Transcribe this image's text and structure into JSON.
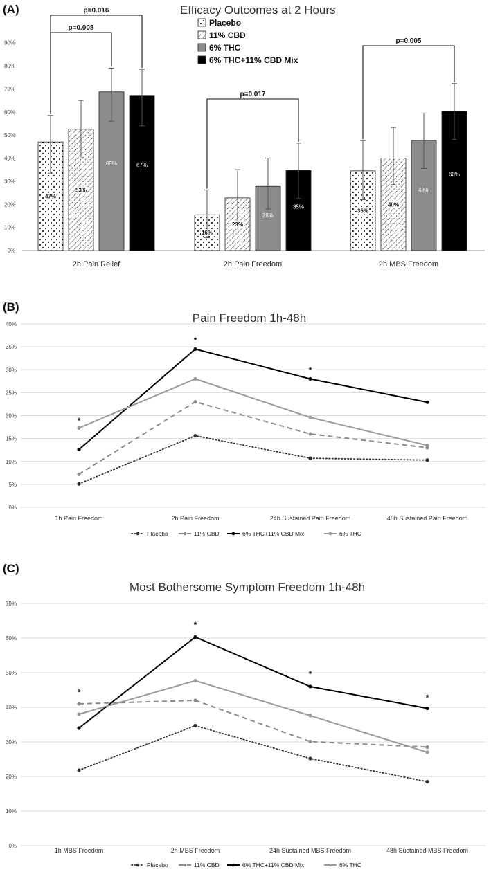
{
  "panels": {
    "a": "(A)",
    "b": "(B)",
    "c": "(C)"
  },
  "colors": {
    "placebo": "#ffffff",
    "cbd": "#ffffff",
    "thc": "#8c8c8c",
    "mix": "#000000",
    "gridline": "#d9d9d9"
  },
  "chart_data": [
    {
      "type": "bar",
      "title": "Efficacy Outcomes at 2 Hours",
      "categories": [
        "2h Pain Relief",
        "2h Pain Freedom",
        "2h MBS Freedom"
      ],
      "yticks": [
        "0%",
        "10%",
        "20%",
        "30%",
        "40%",
        "50%",
        "60%",
        "70%",
        "80%",
        "90%"
      ],
      "ylim": [
        0,
        0.95
      ],
      "series": [
        {
          "name": "Placebo",
          "values": [
            0.47,
            0.155,
            0.345
          ],
          "labels": [
            "47%",
            "16%",
            "35%"
          ],
          "err_hi": [
            0.585,
            0.262,
            0.476
          ],
          "err_lo": [
            0.335,
            0.055,
            0.22
          ]
        },
        {
          "name": "11% CBD",
          "values": [
            0.525,
            0.228,
            0.4
          ],
          "labels": [
            "53%",
            "23%",
            "40%"
          ],
          "err_hi": [
            0.65,
            0.35,
            0.533
          ],
          "err_lo": [
            0.4,
            0.12,
            0.285
          ]
        },
        {
          "name": "6% THC",
          "values": [
            0.687,
            0.278,
            0.477
          ],
          "labels": [
            "69%",
            "28%",
            "48%"
          ],
          "err_hi": [
            0.79,
            0.4,
            0.595
          ],
          "err_lo": [
            0.56,
            0.18,
            0.355
          ]
        },
        {
          "name": "6% THC+11% CBD Mix",
          "values": [
            0.672,
            0.347,
            0.603
          ],
          "labels": [
            "67%",
            "35%",
            "60%"
          ],
          "err_hi": [
            0.785,
            0.465,
            0.723
          ],
          "err_lo": [
            0.54,
            0.225,
            0.48
          ]
        }
      ],
      "annotations": [
        "p=0.016",
        "p=0.008",
        "p=0.017",
        "p=0.005"
      ]
    },
    {
      "type": "line",
      "title": "Pain Freedom 1h-48h",
      "categories": [
        "1h Pain Freedom",
        "2h Pain Freedom",
        "24h Sustained Pain Freedom",
        "48h Sustained Pain Freedom"
      ],
      "yticks": [
        "0%",
        "5%",
        "10%",
        "15%",
        "20%",
        "25%",
        "30%",
        "35%",
        "40%"
      ],
      "ylim": [
        0,
        0.4
      ],
      "series": [
        {
          "name": "Placebo",
          "values": [
            0.051,
            0.156,
            0.107,
            0.103
          ]
        },
        {
          "name": "11% CBD",
          "values": [
            0.072,
            0.23,
            0.16,
            0.13
          ]
        },
        {
          "name": "6% THC+11% CBD Mix",
          "values": [
            0.126,
            0.345,
            0.28,
            0.229
          ]
        },
        {
          "name": "6% THC",
          "values": [
            0.173,
            0.28,
            0.196,
            0.135
          ]
        }
      ],
      "asterisks": [
        "*",
        "*",
        "*"
      ]
    },
    {
      "type": "line",
      "title": "Most Bothersome Symptom Freedom 1h-48h",
      "categories": [
        "1h MBS Freedom",
        "2h MBS Freedom",
        "24h Sustained MBS Freedom",
        "48h Sustained MBS Freedom"
      ],
      "yticks": [
        "0%",
        "10%",
        "20%",
        "30%",
        "40%",
        "50%",
        "60%",
        "70%"
      ],
      "ylim": [
        0,
        0.7
      ],
      "series": [
        {
          "name": "Placebo",
          "values": [
            0.218,
            0.347,
            0.252,
            0.185
          ]
        },
        {
          "name": "11% CBD",
          "values": [
            0.41,
            0.42,
            0.301,
            0.285
          ]
        },
        {
          "name": "6% THC+11% CBD Mix",
          "values": [
            0.34,
            0.603,
            0.46,
            0.397
          ]
        },
        {
          "name": "6% THC",
          "values": [
            0.38,
            0.477,
            0.376,
            0.27
          ]
        }
      ],
      "asterisks": [
        "*",
        "*",
        "*",
        "*"
      ]
    }
  ]
}
